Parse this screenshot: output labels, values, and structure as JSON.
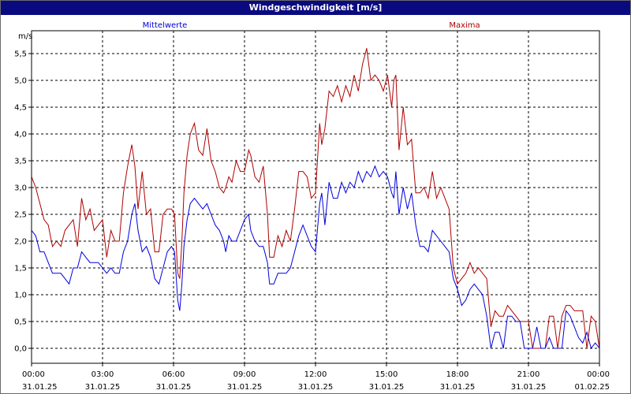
{
  "window": {
    "title": "Windgeschwindigkeit [m/s]"
  },
  "chart_data": {
    "type": "line",
    "title": "Windgeschwindigkeit [m/s]",
    "ylabel": "m/s",
    "ylim": [
      0,
      5.8
    ],
    "yticks": [
      0.0,
      0.5,
      1.0,
      1.5,
      2.0,
      2.5,
      3.0,
      3.5,
      4.0,
      4.5,
      5.0,
      5.5
    ],
    "ytick_labels": [
      "0,0",
      "0,5",
      "1,0",
      "1,5",
      "2,0",
      "2,5",
      "3,0",
      "3,5",
      "4,0",
      "4,5",
      "5,0",
      "5,5"
    ],
    "xlim_hours": [
      0,
      24
    ],
    "xticks": [
      {
        "hour": 0,
        "time": "00:00",
        "date": "31.01.25"
      },
      {
        "hour": 3,
        "time": "03:00",
        "date": "31.01.25"
      },
      {
        "hour": 6,
        "time": "06:00",
        "date": "31.01.25"
      },
      {
        "hour": 9,
        "time": "09:00",
        "date": "31.01.25"
      },
      {
        "hour": 12,
        "time": "12:00",
        "date": "31.01.25"
      },
      {
        "hour": 15,
        "time": "15:00",
        "date": "31.01.25"
      },
      {
        "hour": 18,
        "time": "18:00",
        "date": "31.01.25"
      },
      {
        "hour": 21,
        "time": "21:00",
        "date": "31.01.25"
      },
      {
        "hour": 24,
        "time": "00:00",
        "date": "01.02.25"
      }
    ],
    "grid": true,
    "series": [
      {
        "name": "Mittelwerte",
        "color": "#0000dd",
        "points": [
          [
            0.0,
            2.2
          ],
          [
            0.2,
            2.1
          ],
          [
            0.4,
            1.8
          ],
          [
            0.6,
            1.8
          ],
          [
            0.8,
            1.6
          ],
          [
            1.0,
            1.4
          ],
          [
            1.2,
            1.4
          ],
          [
            1.4,
            1.4
          ],
          [
            1.6,
            1.3
          ],
          [
            1.8,
            1.2
          ],
          [
            2.0,
            1.5
          ],
          [
            2.2,
            1.5
          ],
          [
            2.4,
            1.8
          ],
          [
            2.6,
            1.7
          ],
          [
            2.8,
            1.6
          ],
          [
            3.0,
            1.6
          ],
          [
            3.2,
            1.6
          ],
          [
            3.4,
            1.5
          ],
          [
            3.6,
            1.4
          ],
          [
            3.8,
            1.5
          ],
          [
            4.0,
            1.4
          ],
          [
            4.2,
            1.4
          ],
          [
            4.4,
            1.8
          ],
          [
            4.6,
            2.0
          ],
          [
            4.8,
            2.5
          ],
          [
            4.95,
            2.7
          ],
          [
            5.1,
            2.2
          ],
          [
            5.3,
            1.8
          ],
          [
            5.5,
            1.9
          ],
          [
            5.7,
            1.7
          ],
          [
            5.9,
            1.3
          ],
          [
            6.1,
            1.2
          ],
          [
            6.3,
            1.5
          ],
          [
            6.5,
            1.8
          ],
          [
            6.7,
            1.9
          ],
          [
            6.85,
            1.8
          ],
          [
            7.0,
            0.9
          ],
          [
            7.1,
            0.7
          ],
          [
            7.2,
            1.2
          ],
          [
            7.3,
            1.9
          ],
          [
            7.45,
            2.4
          ],
          [
            7.6,
            2.7
          ],
          [
            7.8,
            2.8
          ],
          [
            8.0,
            2.7
          ],
          [
            8.2,
            2.6
          ],
          [
            8.4,
            2.7
          ],
          [
            8.6,
            2.5
          ],
          [
            8.8,
            2.3
          ],
          [
            9.0,
            2.2
          ],
          [
            9.2,
            2.0
          ],
          [
            9.3,
            1.8
          ],
          [
            9.45,
            2.1
          ],
          [
            9.6,
            2.0
          ],
          [
            9.8,
            2.0
          ],
          [
            10.0,
            2.2
          ],
          [
            10.2,
            2.4
          ],
          [
            10.4,
            2.5
          ],
          [
            10.5,
            2.2
          ],
          [
            10.7,
            2.0
          ],
          [
            10.9,
            1.9
          ],
          [
            11.1,
            1.9
          ],
          [
            11.3,
            1.6
          ],
          [
            11.4,
            1.2
          ],
          [
            11.6,
            1.2
          ],
          [
            11.8,
            1.4
          ],
          [
            12.0,
            1.4
          ],
          [
            12.2,
            1.4
          ],
          [
            12.4,
            1.5
          ],
          [
            12.6,
            1.8
          ],
          [
            12.8,
            2.1
          ],
          [
            13.0,
            2.3
          ],
          [
            13.2,
            2.1
          ],
          [
            13.4,
            1.9
          ],
          [
            13.6,
            1.8
          ],
          [
            13.8,
            2.7
          ],
          [
            13.9,
            2.9
          ],
          [
            14.05,
            2.3
          ],
          [
            14.25,
            3.1
          ],
          [
            14.45,
            2.8
          ],
          [
            14.65,
            2.8
          ],
          [
            14.85,
            3.1
          ],
          [
            15.05,
            2.9
          ],
          [
            15.25,
            3.1
          ],
          [
            15.45,
            3.0
          ],
          [
            15.65,
            3.3
          ],
          [
            15.85,
            3.1
          ],
          [
            16.05,
            3.3
          ],
          [
            16.25,
            3.2
          ],
          [
            16.45,
            3.4
          ],
          [
            16.65,
            3.2
          ],
          [
            16.85,
            3.3
          ],
          [
            17.05,
            3.2
          ],
          [
            17.25,
            2.9
          ],
          [
            17.35,
            2.8
          ],
          [
            17.45,
            3.3
          ],
          [
            17.6,
            2.5
          ],
          [
            17.8,
            3.0
          ],
          [
            18.0,
            2.6
          ],
          [
            18.2,
            2.9
          ],
          [
            18.4,
            2.3
          ],
          [
            18.6,
            1.9
          ],
          [
            18.8,
            1.9
          ],
          [
            19.0,
            1.8
          ],
          [
            19.2,
            2.2
          ],
          [
            19.4,
            2.1
          ],
          [
            19.6,
            2.0
          ],
          [
            19.8,
            1.9
          ],
          [
            20.0,
            1.8
          ],
          [
            20.2,
            1.3
          ],
          [
            20.4,
            1.1
          ],
          [
            20.6,
            0.8
          ],
          [
            20.8,
            0.9
          ],
          [
            21.0,
            1.1
          ],
          [
            21.2,
            1.2
          ],
          [
            21.4,
            1.1
          ],
          [
            21.6,
            1.0
          ],
          [
            21.8,
            0.6
          ],
          [
            22.0,
            0.0
          ],
          [
            22.2,
            0.3
          ],
          [
            22.4,
            0.3
          ],
          [
            22.6,
            0.0
          ],
          [
            22.8,
            0.6
          ],
          [
            23.0,
            0.6
          ],
          [
            23.2,
            0.5
          ],
          [
            23.4,
            0.5
          ],
          [
            23.6,
            0.0
          ],
          [
            23.8,
            0.0
          ],
          [
            24.0,
            0.0
          ],
          [
            24.2,
            0.4
          ],
          [
            24.4,
            0.0
          ],
          [
            24.6,
            0.0
          ],
          [
            24.8,
            0.2
          ],
          [
            25.0,
            0.0
          ],
          [
            25.2,
            0.0
          ],
          [
            25.4,
            0.0
          ],
          [
            25.6,
            0.7
          ],
          [
            25.8,
            0.6
          ],
          [
            26.0,
            0.4
          ],
          [
            26.2,
            0.2
          ],
          [
            26.4,
            0.1
          ],
          [
            26.6,
            0.3
          ],
          [
            26.8,
            0.0
          ],
          [
            27.0,
            0.1
          ],
          [
            27.2,
            0.0
          ]
        ]
      },
      {
        "name": "Maxima",
        "color": "#b00000",
        "points": [
          [
            0.0,
            3.2
          ],
          [
            0.2,
            3.0
          ],
          [
            0.4,
            2.7
          ],
          [
            0.6,
            2.4
          ],
          [
            0.8,
            2.3
          ],
          [
            1.0,
            1.9
          ],
          [
            1.2,
            2.0
          ],
          [
            1.4,
            1.9
          ],
          [
            1.6,
            2.2
          ],
          [
            1.8,
            2.3
          ],
          [
            2.0,
            2.4
          ],
          [
            2.2,
            1.9
          ],
          [
            2.4,
            2.8
          ],
          [
            2.6,
            2.4
          ],
          [
            2.8,
            2.6
          ],
          [
            3.0,
            2.2
          ],
          [
            3.2,
            2.3
          ],
          [
            3.4,
            2.4
          ],
          [
            3.6,
            1.7
          ],
          [
            3.8,
            2.2
          ],
          [
            4.0,
            2.0
          ],
          [
            4.2,
            2.0
          ],
          [
            4.4,
            2.9
          ],
          [
            4.6,
            3.4
          ],
          [
            4.8,
            3.8
          ],
          [
            4.95,
            3.4
          ],
          [
            5.1,
            2.6
          ],
          [
            5.3,
            3.3
          ],
          [
            5.5,
            2.5
          ],
          [
            5.7,
            2.6
          ],
          [
            5.9,
            1.8
          ],
          [
            6.1,
            1.8
          ],
          [
            6.3,
            2.5
          ],
          [
            6.5,
            2.6
          ],
          [
            6.7,
            2.6
          ],
          [
            6.85,
            2.5
          ],
          [
            7.0,
            1.4
          ],
          [
            7.1,
            1.3
          ],
          [
            7.2,
            2.0
          ],
          [
            7.3,
            2.9
          ],
          [
            7.45,
            3.6
          ],
          [
            7.6,
            4.0
          ],
          [
            7.8,
            4.2
          ],
          [
            8.0,
            3.7
          ],
          [
            8.2,
            3.6
          ],
          [
            8.4,
            4.1
          ],
          [
            8.6,
            3.5
          ],
          [
            8.8,
            3.3
          ],
          [
            9.0,
            3.0
          ],
          [
            9.2,
            2.9
          ],
          [
            9.3,
            3.0
          ],
          [
            9.45,
            3.2
          ],
          [
            9.6,
            3.1
          ],
          [
            9.8,
            3.5
          ],
          [
            10.0,
            3.3
          ],
          [
            10.2,
            3.3
          ],
          [
            10.4,
            3.7
          ],
          [
            10.5,
            3.6
          ],
          [
            10.7,
            3.2
          ],
          [
            10.9,
            3.1
          ],
          [
            11.1,
            3.4
          ],
          [
            11.3,
            2.5
          ],
          [
            11.4,
            1.7
          ],
          [
            11.6,
            1.7
          ],
          [
            11.8,
            2.1
          ],
          [
            12.0,
            1.9
          ],
          [
            12.2,
            2.2
          ],
          [
            12.4,
            2.0
          ],
          [
            12.6,
            2.6
          ],
          [
            12.8,
            3.3
          ],
          [
            13.0,
            3.3
          ],
          [
            13.2,
            3.2
          ],
          [
            13.4,
            2.8
          ],
          [
            13.6,
            2.9
          ],
          [
            13.8,
            4.2
          ],
          [
            13.9,
            3.8
          ],
          [
            14.05,
            4.1
          ],
          [
            14.25,
            4.8
          ],
          [
            14.45,
            4.7
          ],
          [
            14.65,
            4.9
          ],
          [
            14.85,
            4.6
          ],
          [
            15.05,
            4.9
          ],
          [
            15.25,
            4.7
          ],
          [
            15.45,
            5.1
          ],
          [
            15.65,
            4.8
          ],
          [
            15.85,
            5.3
          ],
          [
            16.05,
            5.6
          ],
          [
            16.25,
            5.0
          ],
          [
            16.45,
            5.1
          ],
          [
            16.65,
            5.0
          ],
          [
            16.85,
            4.8
          ],
          [
            17.05,
            5.1
          ],
          [
            17.25,
            4.5
          ],
          [
            17.35,
            5.0
          ],
          [
            17.45,
            5.1
          ],
          [
            17.6,
            3.7
          ],
          [
            17.8,
            4.5
          ],
          [
            18.0,
            3.8
          ],
          [
            18.2,
            3.9
          ],
          [
            18.4,
            2.9
          ],
          [
            18.6,
            2.9
          ],
          [
            18.8,
            3.0
          ],
          [
            19.0,
            2.8
          ],
          [
            19.2,
            3.3
          ],
          [
            19.4,
            2.8
          ],
          [
            19.6,
            3.0
          ],
          [
            19.8,
            2.8
          ],
          [
            20.0,
            2.6
          ],
          [
            20.2,
            1.5
          ],
          [
            20.4,
            1.2
          ],
          [
            20.6,
            1.3
          ],
          [
            20.8,
            1.4
          ],
          [
            21.0,
            1.6
          ],
          [
            21.2,
            1.4
          ],
          [
            21.4,
            1.5
          ],
          [
            21.6,
            1.4
          ],
          [
            21.8,
            1.3
          ],
          [
            22.0,
            0.4
          ],
          [
            22.2,
            0.7
          ],
          [
            22.4,
            0.6
          ],
          [
            22.6,
            0.6
          ],
          [
            22.8,
            0.8
          ],
          [
            23.0,
            0.7
          ],
          [
            23.2,
            0.6
          ],
          [
            23.4,
            0.5
          ],
          [
            23.6,
            0.5
          ],
          [
            23.8,
            0.5
          ],
          [
            24.0,
            0.0
          ],
          [
            24.2,
            0.0
          ],
          [
            24.4,
            0.0
          ],
          [
            24.6,
            0.0
          ],
          [
            24.8,
            0.6
          ],
          [
            25.0,
            0.6
          ],
          [
            25.2,
            0.0
          ],
          [
            25.4,
            0.6
          ],
          [
            25.6,
            0.8
          ],
          [
            25.8,
            0.8
          ],
          [
            26.0,
            0.7
          ],
          [
            26.2,
            0.7
          ],
          [
            26.4,
            0.7
          ],
          [
            26.6,
            0.0
          ],
          [
            26.8,
            0.6
          ],
          [
            27.0,
            0.5
          ],
          [
            27.2,
            0.0
          ]
        ]
      }
    ]
  }
}
